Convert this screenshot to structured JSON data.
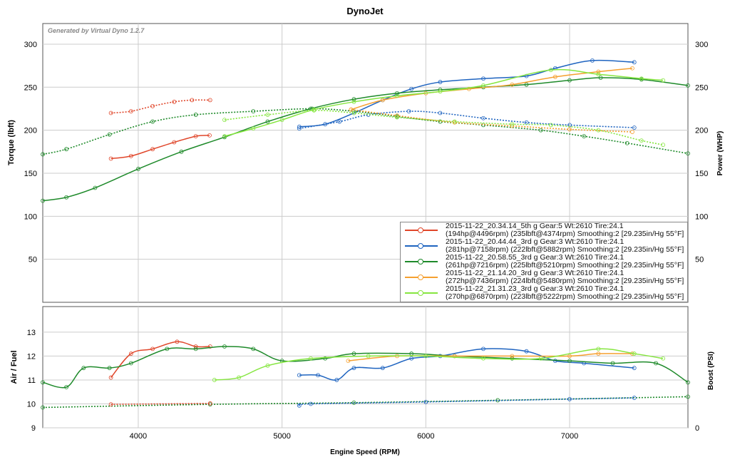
{
  "chart_data": [
    {
      "type": "line",
      "title": "DynoJet",
      "watermark": "Generated by Virtual Dyno 1.2.7",
      "xlabel": "",
      "ylabel": "Torque (lbft)",
      "y2label": "Power (WHP)",
      "xlim": [
        3336,
        7823
      ],
      "ylim": [
        0,
        324
      ],
      "yticks": [
        "300",
        "250",
        "200",
        "150",
        "100",
        "50"
      ],
      "ytick_values": [
        300,
        250,
        200,
        150,
        100,
        50
      ],
      "y2ticks": [
        "300",
        "250",
        "200",
        "150",
        "100",
        "50"
      ],
      "grid": true,
      "legend_position": "bottom-right",
      "series": [
        {
          "name": "2015-11-22_20.34.14_5th g Gear:5 Wt:2610 Tire:24.1",
          "detail": "(194hp@4496rpm) (235lbft@4374rpm) Smoothing:2 [29.235in/Hg 55°F]",
          "color": "#e0462a",
          "power": [
            [
              3810,
              167
            ],
            [
              3950,
              170
            ],
            [
              4100,
              178
            ],
            [
              4250,
              186
            ],
            [
              4400,
              193
            ],
            [
              4496,
              194
            ]
          ],
          "torque": [
            [
              3810,
              220
            ],
            [
              3950,
              222
            ],
            [
              4100,
              228
            ],
            [
              4250,
              233
            ],
            [
              4374,
              235
            ],
            [
              4500,
              235
            ]
          ]
        },
        {
          "name": "2015-11-22_20.44.44_3rd g Gear:3 Wt:2610 Tire:24.1",
          "detail": "(281hp@7158rpm) (222lbft@5882rpm) Smoothing:2 [29.235in/Hg 55°F]",
          "color": "#1f64c0",
          "power": [
            [
              5120,
              204
            ],
            [
              5300,
              207
            ],
            [
              5500,
              220
            ],
            [
              5700,
              235
            ],
            [
              5900,
              248
            ],
            [
              6100,
              256
            ],
            [
              6400,
              260
            ],
            [
              6700,
              263
            ],
            [
              6900,
              272
            ],
            [
              7158,
              281
            ],
            [
              7450,
              279
            ]
          ],
          "torque": [
            [
              5120,
              202
            ],
            [
              5400,
              210
            ],
            [
              5600,
              218
            ],
            [
              5882,
              222
            ],
            [
              6100,
              220
            ],
            [
              6400,
              214
            ],
            [
              6700,
              209
            ],
            [
              7000,
              206
            ],
            [
              7450,
              203
            ]
          ]
        },
        {
          "name": "2015-11-22_20.58.55_3rd g Gear:3 Wt:2610 Tire:24.1",
          "detail": "(261hp@7216rpm) (225lbft@5210rpm) Smoothing:2 [29.235in/Hg 55°F]",
          "color": "#1e8a2a",
          "power": [
            [
              3336,
              118
            ],
            [
              3500,
              122
            ],
            [
              3700,
              133
            ],
            [
              4000,
              155
            ],
            [
              4300,
              175
            ],
            [
              4600,
              192
            ],
            [
              4900,
              210
            ],
            [
              5200,
              225
            ],
            [
              5500,
              236
            ],
            [
              5800,
              243
            ],
            [
              6100,
              247
            ],
            [
              6400,
              250
            ],
            [
              6700,
              253
            ],
            [
              7000,
              258
            ],
            [
              7216,
              261
            ],
            [
              7500,
              259
            ],
            [
              7823,
              252
            ]
          ],
          "torque": [
            [
              3336,
              172
            ],
            [
              3500,
              178
            ],
            [
              3800,
              195
            ],
            [
              4100,
              210
            ],
            [
              4400,
              218
            ],
            [
              4800,
              222
            ],
            [
              5210,
              225
            ],
            [
              5500,
              222
            ],
            [
              5800,
              216
            ],
            [
              6100,
              210
            ],
            [
              6400,
              206
            ],
            [
              6800,
              200
            ],
            [
              7100,
              193
            ],
            [
              7400,
              185
            ],
            [
              7823,
              173
            ]
          ]
        },
        {
          "name": "2015-11-22_21.14.20_3rd g Gear:3 Wt:2610 Tire:24.1",
          "detail": "(272hp@7436rpm) (224lbft@5480rpm) Smoothing:2 [29.235in/Hg 55°F]",
          "color": "#f5a030",
          "power": [
            [
              5480,
              224
            ],
            [
              5700,
              235
            ],
            [
              6000,
              243
            ],
            [
              6300,
              248
            ],
            [
              6600,
              253
            ],
            [
              6900,
              262
            ],
            [
              7200,
              268
            ],
            [
              7436,
              272
            ]
          ],
          "torque": [
            [
              5480,
              224
            ],
            [
              5800,
              217
            ],
            [
              6200,
              209
            ],
            [
              6600,
              205
            ],
            [
              7000,
              201
            ],
            [
              7436,
              198
            ]
          ]
        },
        {
          "name": "2015-11-22_21.31.23_3rd g Gear:3 Wt:2610 Tire:24.1",
          "detail": "(270hp@6870rpm) (223lbft@5222rpm) Smoothing:2 [29.235in/Hg 55°F]",
          "color": "#86e640",
          "power": [
            [
              4600,
              193
            ],
            [
              4800,
              202
            ],
            [
              5000,
              212
            ],
            [
              5222,
              224
            ],
            [
              5500,
              233
            ],
            [
              5800,
              240
            ],
            [
              6100,
              245
            ],
            [
              6400,
              252
            ],
            [
              6870,
              270
            ],
            [
              7200,
              265
            ],
            [
              7500,
              260
            ],
            [
              7650,
              258
            ]
          ],
          "torque": [
            [
              4600,
              212
            ],
            [
              4900,
              218
            ],
            [
              5222,
              223
            ],
            [
              5500,
              220
            ],
            [
              5800,
              215
            ],
            [
              6200,
              210
            ],
            [
              6600,
              207
            ],
            [
              6870,
              206
            ],
            [
              7200,
              200
            ],
            [
              7500,
              188
            ],
            [
              7650,
              183
            ]
          ]
        }
      ]
    },
    {
      "type": "line",
      "xlabel": "Engine Speed (RPM)",
      "ylabel": "Air / Fuel",
      "y2label": "Boost (PSI)",
      "xlim": [
        3336,
        7823
      ],
      "ylim": [
        9,
        14.07
      ],
      "yticks": [
        "13",
        "12",
        "11",
        "10",
        "9"
      ],
      "ytick_values": [
        13,
        12,
        11,
        10,
        9
      ],
      "y2ticks": [
        "0"
      ],
      "xticks": [
        "4000",
        "5000",
        "6000",
        "7000"
      ],
      "xtick_values": [
        4000,
        5000,
        6000,
        7000
      ],
      "grid": true,
      "afr": [
        {
          "color": "#e0462a",
          "points": [
            [
              3810,
              11.1
            ],
            [
              3950,
              12.1
            ],
            [
              4100,
              12.3
            ],
            [
              4270,
              12.6
            ],
            [
              4400,
              12.4
            ],
            [
              4500,
              12.4
            ]
          ]
        },
        {
          "color": "#1f64c0",
          "points": [
            [
              5120,
              11.2
            ],
            [
              5250,
              11.2
            ],
            [
              5380,
              11.0
            ],
            [
              5500,
              11.5
            ],
            [
              5700,
              11.5
            ],
            [
              5900,
              11.9
            ],
            [
              6100,
              12.0
            ],
            [
              6400,
              12.3
            ],
            [
              6700,
              12.2
            ],
            [
              6900,
              11.8
            ],
            [
              7100,
              11.7
            ],
            [
              7450,
              11.5
            ]
          ]
        },
        {
          "color": "#1e8a2a",
          "points": [
            [
              3336,
              10.9
            ],
            [
              3500,
              10.7
            ],
            [
              3620,
              11.5
            ],
            [
              3800,
              11.5
            ],
            [
              3950,
              11.7
            ],
            [
              4200,
              12.3
            ],
            [
              4400,
              12.3
            ],
            [
              4600,
              12.4
            ],
            [
              4800,
              12.3
            ],
            [
              5000,
              11.8
            ],
            [
              5300,
              11.9
            ],
            [
              5500,
              12.1
            ],
            [
              5900,
              12.1
            ],
            [
              6200,
              12.0
            ],
            [
              6600,
              11.9
            ],
            [
              7000,
              11.8
            ],
            [
              7300,
              11.7
            ],
            [
              7600,
              11.7
            ],
            [
              7823,
              10.9
            ]
          ]
        },
        {
          "color": "#f5a030",
          "points": [
            [
              5460,
              11.8
            ],
            [
              5800,
              12.0
            ],
            [
              6200,
              12.0
            ],
            [
              6600,
              12.0
            ],
            [
              7000,
              12.0
            ],
            [
              7200,
              12.1
            ],
            [
              7436,
              12.1
            ]
          ]
        },
        {
          "color": "#86e640",
          "points": [
            [
              4530,
              11.0
            ],
            [
              4700,
              11.1
            ],
            [
              4900,
              11.6
            ],
            [
              5200,
              11.9
            ],
            [
              5600,
              12.0
            ],
            [
              6000,
              12.0
            ],
            [
              6400,
              11.9
            ],
            [
              6800,
              11.9
            ],
            [
              7200,
              12.3
            ],
            [
              7450,
              12.1
            ],
            [
              7650,
              11.9
            ]
          ]
        }
      ],
      "boost_on_afr_scale": [
        {
          "color": "#1e8a2a",
          "points": [
            [
              3336,
              9.85
            ],
            [
              4500,
              9.98
            ],
            [
              5500,
              10.05
            ],
            [
              6500,
              10.15
            ],
            [
              7823,
              10.3
            ]
          ]
        },
        {
          "color": "#e0462a",
          "points": [
            [
              3810,
              9.98
            ],
            [
              4500,
              10.02
            ]
          ]
        },
        {
          "color": "#1f64c0",
          "points": [
            [
              5120,
              9.93
            ],
            [
              5200,
              10.0
            ],
            [
              6000,
              10.08
            ],
            [
              7000,
              10.2
            ],
            [
              7450,
              10.25
            ]
          ]
        }
      ]
    }
  ]
}
